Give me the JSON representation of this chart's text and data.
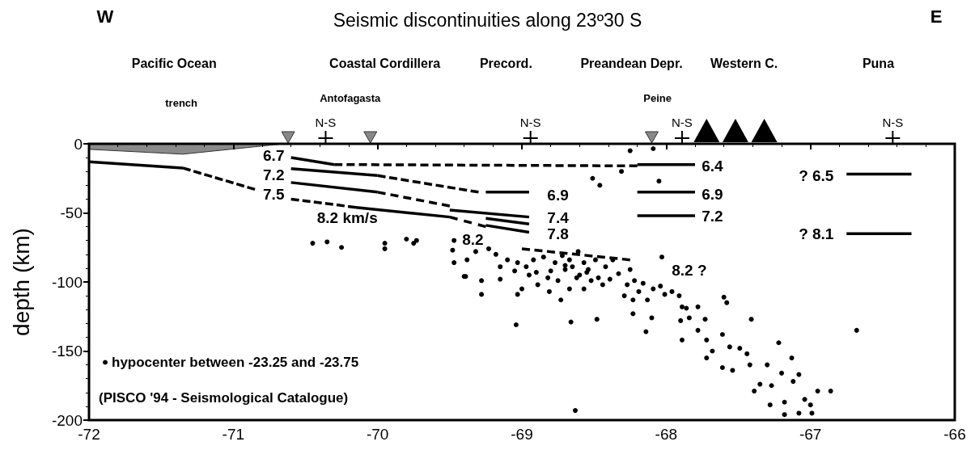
{
  "chart_data": {
    "type": "line",
    "title": "Seismic discontinuities along 23º30 S",
    "ylabel": "depth (km)",
    "xlim": [
      -72,
      -66
    ],
    "xticks": [
      -72,
      -71,
      -70,
      -69,
      -68,
      -67,
      -66
    ],
    "ylim": [
      -200,
      0
    ],
    "yticks": [
      -200,
      -150,
      -100,
      -50,
      0
    ],
    "grid": false,
    "legend": "bottom left",
    "marker": "none",
    "series": [
      {
        "color": "#000000",
        "line_style": "solid",
        "x": [
          -72,
          -71.35
        ],
        "values": [
          -13,
          -17.5
        ]
      },
      {
        "type": "line",
        "color": "#000000",
        "line_style": "dashed",
        "x": [
          -71.35,
          -70.85
        ],
        "values": [
          -17.5,
          -33
        ]
      },
      {
        "type": "line",
        "color": "#000000",
        "line_style": "solid",
        "x": [
          -70.6,
          -70.3
        ],
        "values": [
          -10,
          -15
        ]
      },
      {
        "type": "line",
        "color": "#000000",
        "line_style": "dashed",
        "x": [
          -70.3,
          -68.2
        ],
        "values": [
          -15,
          -16
        ]
      },
      {
        "type": "line",
        "color": "#000000",
        "line_style": "solid",
        "x": [
          -68.2,
          -67.8
        ],
        "values": [
          -15,
          -15
        ]
      },
      {
        "type": "line",
        "color": "#000000",
        "line_style": "solid",
        "x": [
          -70.6,
          -70
        ],
        "values": [
          -18,
          -23
        ]
      },
      {
        "type": "line",
        "color": "#000000",
        "line_style": "dashed",
        "x": [
          -70,
          -69.3
        ],
        "values": [
          -23,
          -35
        ]
      },
      {
        "type": "line",
        "color": "#000000",
        "line_style": "solid",
        "x": [
          -69.25,
          -68.95
        ],
        "values": [
          -35,
          -35
        ]
      },
      {
        "type": "line",
        "color": "#000000",
        "line_style": "solid",
        "x": [
          -70.6,
          -70
        ],
        "values": [
          -28,
          -35
        ]
      },
      {
        "type": "line",
        "color": "#000000",
        "line_style": "dashed",
        "x": [
          -70,
          -69.5
        ],
        "values": [
          -35,
          -45
        ]
      },
      {
        "type": "line",
        "color": "#000000",
        "line_style": "solid",
        "x": [
          -69.5,
          -68.95
        ],
        "values": [
          -48,
          -53
        ]
      },
      {
        "type": "line",
        "color": "#000000",
        "line_style": "solid",
        "x": [
          -69.25,
          -68.95
        ],
        "values": [
          -54,
          -58
        ]
      },
      {
        "type": "line",
        "color": "#000000",
        "line_style": "solid",
        "x": [
          -69.25,
          -68.95
        ],
        "values": [
          -59,
          -64
        ]
      },
      {
        "type": "line",
        "color": "#000000",
        "line_style": "dashed",
        "x": [
          -70.6,
          -70.15
        ],
        "values": [
          -40,
          -46
        ]
      },
      {
        "type": "line",
        "color": "#000000",
        "line_style": "solid",
        "x": [
          -70.15,
          -69.5
        ],
        "values": [
          -46,
          -53
        ]
      },
      {
        "type": "line",
        "color": "#000000",
        "line_style": "dashed",
        "x": [
          -69.5,
          -69.25
        ],
        "values": [
          -53,
          -60
        ]
      },
      {
        "type": "line",
        "color": "#000000",
        "line_style": "dashed",
        "x": [
          -69,
          -68.25
        ],
        "values": [
          -76,
          -84
        ]
      },
      {
        "type": "line",
        "color": "#000000",
        "line_style": "solid",
        "x": [
          -68.2,
          -67.8
        ],
        "values": [
          -35,
          -35
        ]
      },
      {
        "type": "line",
        "color": "#000000",
        "line_style": "solid",
        "x": [
          -68.2,
          -67.8
        ],
        "values": [
          -52,
          -52
        ]
      },
      {
        "type": "line",
        "color": "#000000",
        "line_style": "solid",
        "x": [
          -66.75,
          -66.3
        ],
        "values": [
          -22,
          -22
        ]
      },
      {
        "type": "line",
        "color": "#000000",
        "line_style": "solid",
        "x": [
          -66.75,
          -66.3
        ],
        "values": [
          -65,
          -65
        ]
      },
      {
        "type": "scatter",
        "name": "hypocenter between -23.25 and -23.75",
        "color": "#000000",
        "marker": "circle",
        "x": [
          -70.45,
          -70.35,
          -70.25,
          -69.95,
          -69.95,
          -69.8,
          -69.75,
          -68.25,
          -68.09,
          -68.51,
          -68.46,
          -68.05,
          -68.31,
          -69.73,
          -69.4,
          -69.47,
          -69.48,
          -69.47,
          -69.39,
          -69.28,
          -69.28,
          -69.38,
          -69.32,
          -69.23,
          -69.18,
          -69.15,
          -69.15,
          -69.1,
          -69.03,
          -69.03,
          -69,
          -68.97,
          -68.92,
          -68.9,
          -68.89,
          -68.85,
          -68.82,
          -68.81,
          -68.77,
          -68.75,
          -68.73,
          -68.72,
          -68.7,
          -68.67,
          -68.67,
          -68.65,
          -68.62,
          -68.61,
          -68.57,
          -68.57,
          -68.54,
          -68.52,
          -68.49,
          -68.47,
          -68.44,
          -68.42,
          -68.39,
          -68.37,
          -68.33,
          -68.29,
          -68.27,
          -68.25,
          -68.23,
          -68.23,
          -68.22,
          -68.19,
          -68.16,
          -68.14,
          -68.13,
          -68.1,
          -68.09,
          -68.04,
          -68.03,
          -68.01,
          -67.96,
          -67.91,
          -67.89,
          -67.9,
          -67.89,
          -67.86,
          -67.84,
          -67.78,
          -67.78,
          -67.73,
          -67.72,
          -67.72,
          -67.68,
          -67.61,
          -67.6,
          -67.58,
          -67.61,
          -67.56,
          -67.54,
          -67.49,
          -67.44,
          -67.42,
          -67.41,
          -67.39,
          -67.35,
          -67.3,
          -67.28,
          -67.27,
          -67.22,
          -67.2,
          -67.18,
          -67.18,
          -67.13,
          -67.12,
          -67.08,
          -67.08,
          -67.04,
          -67,
          -66.99,
          -66.95,
          -66.86,
          -66.68,
          -69.04,
          -68.66,
          -68.48,
          -68.63,
          -68.8,
          -68.6,
          -68.7,
          -68.55,
          -68.95,
          -69.05
        ],
        "values": [
          -72,
          -71,
          -75,
          -72,
          -76,
          -69,
          -72,
          -5,
          -3.5,
          -25,
          -30,
          -27,
          -20,
          -70,
          -96,
          -70,
          -77,
          -86,
          -96,
          -99,
          -109,
          -84,
          -78,
          -76,
          -80,
          -89,
          -98,
          -84,
          -86,
          -109,
          -105,
          -89,
          -84,
          -93,
          -102,
          -82,
          -97,
          -107,
          -86,
          -99,
          -113,
          -81,
          -91,
          -84,
          -105,
          -89,
          -97,
          -78,
          -86,
          -105,
          -91,
          -99,
          -84,
          -97,
          -102,
          -89,
          -98,
          -84,
          -94,
          -110,
          -102,
          -91,
          -113,
          -123,
          -99,
          -107,
          -101,
          -136,
          -113,
          -126,
          -105,
          -103,
          -82,
          -109,
          -107,
          -110,
          -118,
          -128,
          -142,
          -119,
          -126,
          -118,
          -135,
          -127,
          -142,
          -155,
          -150,
          -138,
          -111,
          -115,
          -162,
          -147,
          -164,
          -148,
          -152,
          -160,
          -127,
          -179,
          -174,
          -160,
          -189,
          -175,
          -144,
          -166,
          -187,
          -196,
          -155,
          -172,
          -167,
          -195,
          -185,
          -189,
          -195,
          -179,
          -179,
          -135,
          -131,
          -129,
          -127,
          -193,
          -92,
          -95,
          -88,
          -93,
          -95,
          -92
        ]
      }
    ],
    "annotations": [
      "W",
      "E",
      "(PISCO '94 - Seismological Catalogue)",
      "6.7",
      "7.2",
      "7.5",
      "8.2 km/s",
      "6.9",
      "7.4",
      "7.8",
      "8.2",
      "8.2 ?",
      "6.4",
      "6.9",
      "7.2",
      "? 6.5",
      "? 8.1",
      "Pacific Ocean",
      "Coastal Cordillera",
      "Precord.",
      "Preandean Depr.",
      "Western C.",
      "Puna",
      "trench",
      "Antofagasta",
      "Peine",
      "N-S",
      "N-S",
      "N-S",
      "N-S"
    ]
  }
}
